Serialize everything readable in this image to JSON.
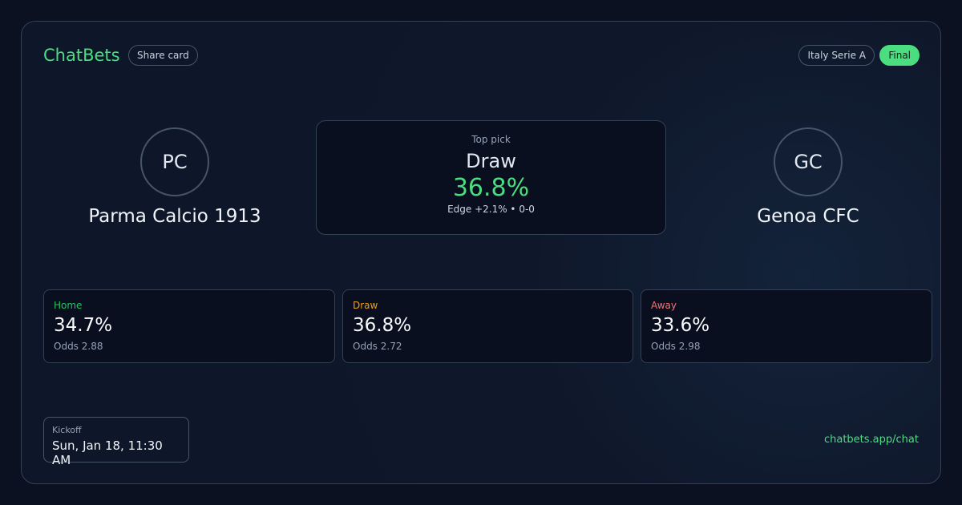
{
  "header": {
    "brand": "ChatBets",
    "share_label": "Share card",
    "league": "Italy Serie A",
    "status": "Final"
  },
  "home": {
    "initials": "PC",
    "name": "Parma Calcio 1913"
  },
  "away": {
    "initials": "GC",
    "name": "Genoa CFC"
  },
  "top_pick": {
    "label": "Top pick",
    "selection": "Draw",
    "probability": "36.8%",
    "detail": "Edge +2.1% • 0-0"
  },
  "outcomes": [
    {
      "label": "Home",
      "probability": "34.7%",
      "odds": "Odds 2.88",
      "color": "#22c55e"
    },
    {
      "label": "Draw",
      "probability": "36.8%",
      "odds": "Odds 2.72",
      "color": "#f59e0b"
    },
    {
      "label": "Away",
      "probability": "33.6%",
      "odds": "Odds 2.98",
      "color": "#f87171"
    }
  ],
  "kickoff": {
    "label": "Kickoff",
    "value": "Sun, Jan 18, 11:30 AM"
  },
  "footer": {
    "link": "chatbets.app/chat"
  }
}
